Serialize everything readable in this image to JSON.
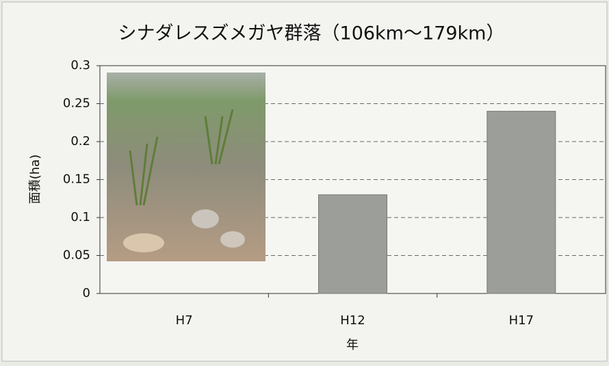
{
  "chart_data": {
    "type": "bar",
    "title": "シナダレスズメガヤ群落（106km～179km）",
    "x_label": "年",
    "y_label": "面積(ha)",
    "categories": [
      "H7",
      "H12",
      "H17"
    ],
    "values": [
      0,
      0.13,
      0.24
    ],
    "color": "#9c9e9a",
    "ylim": [
      0,
      0.3
    ],
    "yticks": [
      0,
      0.05,
      0.1,
      0.15,
      0.2,
      0.25,
      0.3
    ],
    "grid": true
  }
}
